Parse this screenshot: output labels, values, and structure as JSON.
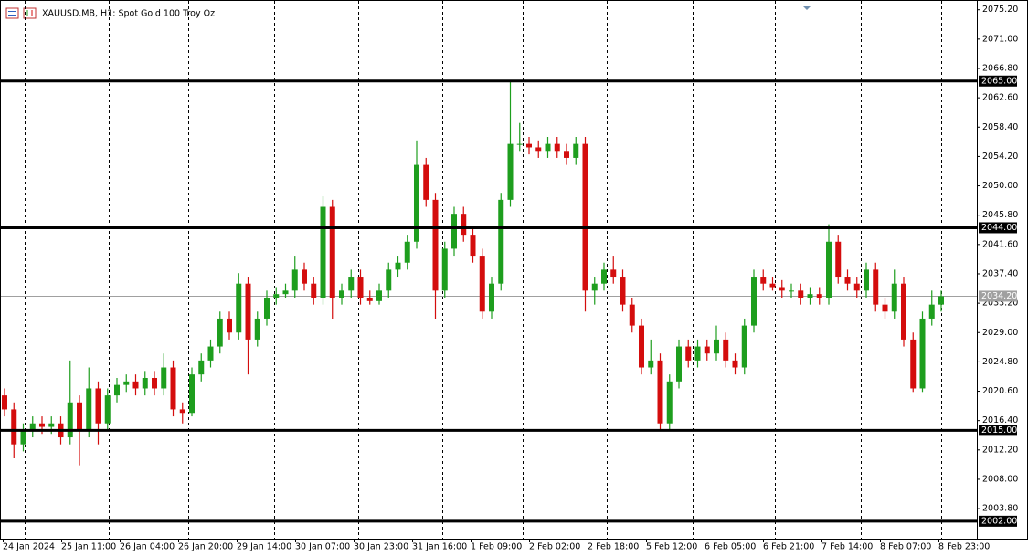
{
  "chart_data": {
    "type": "candlestick",
    "title": "XAUUSD.MB, H1:  Spot Gold 100 Troy Oz",
    "up_color": "#1e9e1e",
    "down_color": "#d40d0d",
    "ylim": [
      1999.5,
      2076.6
    ],
    "yticks": [
      {
        "value": 2075.2,
        "label": "2075.20"
      },
      {
        "value": 2071,
        "label": "2071.00"
      },
      {
        "value": 2066.8,
        "label": "2066.80"
      },
      {
        "value": 2062.6,
        "label": "2062.60"
      },
      {
        "value": 2058.4,
        "label": "2058.40"
      },
      {
        "value": 2054.2,
        "label": "2054.20"
      },
      {
        "value": 2050,
        "label": "2050.00"
      },
      {
        "value": 2045.8,
        "label": "2045.80"
      },
      {
        "value": 2041.6,
        "label": "2041.60"
      },
      {
        "value": 2037.4,
        "label": "2037.40"
      },
      {
        "value": 2033.2,
        "label": "2033.20"
      },
      {
        "value": 2029,
        "label": "2029.00"
      },
      {
        "value": 2024.8,
        "label": "2024.80"
      },
      {
        "value": 2020.6,
        "label": "2020.60"
      },
      {
        "value": 2016.4,
        "label": "2016.40"
      },
      {
        "value": 2012.2,
        "label": "2012.20"
      },
      {
        "value": 2008,
        "label": "2008.00"
      },
      {
        "value": 2003.8,
        "label": "2003.80"
      }
    ],
    "xtick_labels": [
      "24 Jan 2024",
      "25 Jan 11:00",
      "26 Jan 04:00",
      "26 Jan 20:00",
      "29 Jan 14:00",
      "30 Jan 07:00",
      "30 Jan 23:00",
      "31 Jan 16:00",
      "1 Feb 09:00",
      "2 Feb 02:00",
      "2 Feb 18:00",
      "5 Feb 12:00",
      "6 Feb 05:00",
      "6 Feb 21:00",
      "7 Feb 14:00",
      "8 Feb 07:00",
      "8 Feb 23:00"
    ],
    "levels": [
      {
        "value": 2065,
        "label": "2065.00"
      },
      {
        "value": 2044,
        "label": "2044.00"
      },
      {
        "value": 2015,
        "label": "2015.00"
      },
      {
        "value": 2002,
        "label": "2002.00"
      }
    ],
    "current_price": {
      "value": 2034.2,
      "label": "2034.20"
    },
    "open": [
      2020,
      2018,
      2013,
      2015,
      2016,
      2015.5,
      2016,
      2014,
      2019,
      2015,
      2021,
      2016,
      2020,
      2021.5,
      2022,
      2021,
      2022.5,
      2021,
      2024,
      2018,
      2017.5,
      2023,
      2025,
      2027,
      2031,
      2029,
      2036,
      2028,
      2031,
      2034,
      2034.5,
      2035,
      2038,
      2036,
      2034,
      2047,
      2034,
      2035,
      2037,
      2034,
      2033.5,
      2035,
      2038,
      2039,
      2042,
      2053,
      2048,
      2035,
      2041,
      2046,
      2043,
      2040,
      2032,
      2036,
      2048,
      2056,
      2056,
      2055.5,
      2055,
      2056,
      2055,
      2054,
      2056,
      2035,
      2036,
      2038,
      2037,
      2033,
      2030,
      2024,
      2025,
      2016,
      2022,
      2027,
      2025,
      2027,
      2026,
      2028,
      2025,
      2024,
      2030,
      2037,
      2036,
      2035.5,
      2035,
      2035,
      2034,
      2034.5,
      2034,
      2042,
      2037,
      2036,
      2035,
      2038,
      2033,
      2032,
      2036,
      2028,
      2021,
      2031,
      2033
    ],
    "high": [
      2021,
      2019,
      2016,
      2017,
      2017,
      2017,
      2017,
      2025,
      2020,
      2024,
      2022,
      2021,
      2022.5,
      2023,
      2023,
      2023.5,
      2023.5,
      2026,
      2025,
      2019,
      2024,
      2026,
      2028,
      2032,
      2032,
      2037.5,
      2037,
      2032,
      2035,
      2035.5,
      2036,
      2040,
      2039,
      2037,
      2048.5,
      2048,
      2036,
      2038,
      2038,
      2035,
      2036,
      2039,
      2040,
      2043,
      2056.5,
      2054,
      2049,
      2042,
      2047,
      2047,
      2044,
      2041,
      2037,
      2049,
      2065,
      2059,
      2057,
      2056.5,
      2057,
      2057,
      2056,
      2057,
      2057,
      2037,
      2039,
      2040,
      2038,
      2034,
      2031,
      2028,
      2026,
      2023,
      2028,
      2028,
      2028,
      2028,
      2030,
      2029,
      2026,
      2031,
      2038,
      2038,
      2037,
      2036.5,
      2036,
      2036,
      2035.5,
      2035.5,
      2044.5,
      2043,
      2038,
      2037,
      2039,
      2039,
      2034,
      2038,
      2037,
      2029,
      2032,
      2035,
      2035
    ],
    "low": [
      2017,
      2011,
      2012,
      2014,
      2014.5,
      2014.5,
      2013,
      2013,
      2010,
      2014,
      2013,
      2015,
      2019,
      2020.5,
      2020,
      2020,
      2020,
      2020,
      2017,
      2016,
      2017,
      2022,
      2024,
      2026,
      2028,
      2028,
      2023,
      2027,
      2030,
      2033,
      2034,
      2034,
      2035,
      2033,
      2033,
      2031,
      2033,
      2034,
      2033,
      2033,
      2033,
      2034,
      2037,
      2038,
      2041,
      2047,
      2031,
      2034,
      2040,
      2042,
      2039,
      2031,
      2031,
      2035,
      2047,
      2055,
      2054.5,
      2054,
      2054,
      2054,
      2053,
      2053,
      2032,
      2033,
      2035,
      2036,
      2032,
      2029,
      2023,
      2023,
      2015,
      2015,
      2021,
      2024,
      2024,
      2025,
      2025,
      2024,
      2023,
      2023,
      2029,
      2035,
      2035,
      2034,
      2034,
      2033,
      2033,
      2033,
      2033,
      2036,
      2035,
      2034,
      2034,
      2032,
      2031,
      2031,
      2027,
      2020.5,
      2020.5,
      2030,
      2032
    ],
    "close": [
      2018,
      2013,
      2015,
      2016,
      2015.5,
      2016,
      2014,
      2019,
      2015,
      2021,
      2016,
      2020,
      2021.5,
      2022,
      2021,
      2022.5,
      2021,
      2024,
      2018,
      2017.5,
      2023,
      2025,
      2027,
      2031,
      2029,
      2036,
      2028,
      2031,
      2034,
      2034.5,
      2035,
      2038,
      2036,
      2034,
      2047,
      2034,
      2035,
      2037,
      2034,
      2033.5,
      2035,
      2038,
      2039,
      2042,
      2053,
      2048,
      2035,
      2041,
      2046,
      2043,
      2040,
      2032,
      2036,
      2048,
      2056,
      2056,
      2055.5,
      2055,
      2056,
      2055,
      2054,
      2056,
      2035,
      2036,
      2038,
      2037,
      2033,
      2030,
      2024,
      2025,
      2016,
      2022,
      2027,
      2025,
      2027,
      2026,
      2028,
      2025,
      2024,
      2030,
      2037,
      2036,
      2035.5,
      2035,
      2035,
      2034,
      2034.5,
      2034,
      2042,
      2037,
      2036,
      2035,
      2038,
      2033,
      2032,
      2036,
      2028,
      2021,
      2031,
      2033,
      2034.2
    ]
  }
}
